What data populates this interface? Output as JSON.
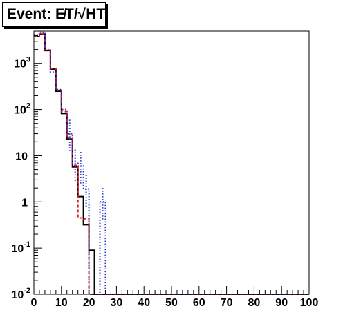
{
  "title": "Event: E̸T/√HT",
  "chart_data": {
    "type": "line",
    "title": "Event: E̸T/√HT",
    "xlabel": "",
    "ylabel": "",
    "xlim": [
      0,
      100
    ],
    "ylim": [
      0.01,
      5000
    ],
    "y_scale": "log",
    "grid": false,
    "legend": "none",
    "x_ticks": [
      "0",
      "10",
      "20",
      "30",
      "40",
      "50",
      "60",
      "70",
      "80",
      "90",
      "100"
    ],
    "y_ticks": [
      {
        "value": 0.01,
        "base": "10",
        "exp": "-2"
      },
      {
        "value": 0.1,
        "base": "10",
        "exp": "-1"
      },
      {
        "value": 1,
        "base": "1",
        "exp": ""
      },
      {
        "value": 10,
        "base": "10",
        "exp": ""
      },
      {
        "value": 100,
        "base": "10",
        "exp": "2"
      },
      {
        "value": 1000,
        "base": "10",
        "exp": "3"
      }
    ],
    "bin_edges": [
      0,
      2,
      4,
      6,
      8,
      10,
      12,
      14,
      16,
      18,
      20,
      22,
      24,
      26,
      28,
      100
    ],
    "series": [
      {
        "color": "#000000",
        "style": "solid",
        "values": [
          3800,
          4300,
          1900,
          750,
          250,
          82,
          23,
          5.7,
          1.3,
          0.32,
          0.09,
          0,
          0,
          0,
          0
        ]
      },
      {
        "color": "#e8141d",
        "style": "dashed",
        "values": [
          3900,
          4400,
          1950,
          780,
          260,
          90,
          25,
          6.2,
          0.45,
          0.43,
          0,
          0,
          0,
          0,
          0
        ]
      },
      {
        "color": "#2233cc",
        "style": "dotted",
        "values": [
          4200,
          4700,
          2000,
          650,
          270,
          100,
          30,
          6.8,
          6.0,
          1.9,
          0,
          0,
          1.0,
          0,
          0
        ],
        "error_bin_indices": [
          6,
          7,
          8,
          9,
          12
        ]
      }
    ]
  }
}
